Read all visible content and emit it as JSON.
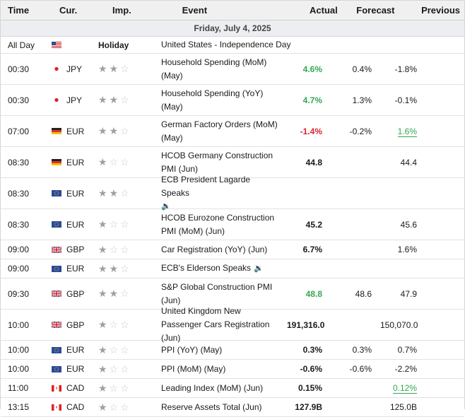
{
  "header": {
    "time": "Time",
    "cur": "Cur.",
    "imp": "Imp.",
    "event": "Event",
    "actual": "Actual",
    "forecast": "Forecast",
    "previous": "Previous"
  },
  "date_label": "Friday, July 4, 2025",
  "rows": [
    {
      "time": "All Day",
      "cur": "",
      "flag": "us",
      "imp": "Holiday",
      "event": "United States - Independence Day",
      "actual": "",
      "forecast": "",
      "previous": "",
      "holiday": true
    },
    {
      "time": "00:30",
      "cur": "JPY",
      "flag": "jp",
      "imp": 2,
      "event": "Household Spending (MoM) (May)",
      "actual": "4.6%",
      "actual_color": "green",
      "forecast": "0.4%",
      "previous": "-1.8%"
    },
    {
      "time": "00:30",
      "cur": "JPY",
      "flag": "jp",
      "imp": 2,
      "event": "Household Spending (YoY) (May)",
      "actual": "4.7%",
      "actual_color": "green",
      "forecast": "1.3%",
      "previous": "-0.1%"
    },
    {
      "time": "07:00",
      "cur": "EUR",
      "flag": "de",
      "imp": 2,
      "event": "German Factory Orders (MoM) (May)",
      "actual": "-1.4%",
      "actual_color": "red",
      "forecast": "-0.2%",
      "previous": "1.6%",
      "prev_color": "green"
    },
    {
      "time": "08:30",
      "cur": "EUR",
      "flag": "de",
      "imp": 1,
      "event": "HCOB Germany Construction PMI (Jun)",
      "actual": "44.8",
      "forecast": "",
      "previous": "44.4"
    },
    {
      "time": "08:30",
      "cur": "EUR",
      "flag": "eu",
      "imp": 2,
      "event": "ECB President Lagarde Speaks",
      "actual": "",
      "forecast": "",
      "previous": "",
      "speaker": true
    },
    {
      "time": "08:30",
      "cur": "EUR",
      "flag": "eu",
      "imp": 1,
      "event": "HCOB Eurozone Construction PMI (MoM) (Jun)",
      "actual": "45.2",
      "forecast": "",
      "previous": "45.6"
    },
    {
      "time": "09:00",
      "cur": "GBP",
      "flag": "gb",
      "imp": 1,
      "event": "Car Registration (YoY) (Jun)",
      "actual": "6.7%",
      "forecast": "",
      "previous": "1.6%"
    },
    {
      "time": "09:00",
      "cur": "EUR",
      "flag": "eu",
      "imp": 2,
      "event": "ECB's Elderson Speaks",
      "actual": "",
      "forecast": "",
      "previous": "",
      "speaker": true
    },
    {
      "time": "09:30",
      "cur": "GBP",
      "flag": "gb",
      "imp": 2,
      "event": "S&P Global Construction PMI (Jun)",
      "actual": "48.8",
      "actual_color": "green",
      "forecast": "48.6",
      "previous": "47.9"
    },
    {
      "time": "10:00",
      "cur": "GBP",
      "flag": "gb",
      "imp": 1,
      "event": "United Kingdom New Passenger Cars Registration (Jun)",
      "actual": "191,316.0",
      "forecast": "",
      "previous": "150,070.0"
    },
    {
      "time": "10:00",
      "cur": "EUR",
      "flag": "eu",
      "imp": 1,
      "event": "PPI (YoY) (May)",
      "actual": "0.3%",
      "forecast": "0.3%",
      "previous": "0.7%"
    },
    {
      "time": "10:00",
      "cur": "EUR",
      "flag": "eu",
      "imp": 1,
      "event": "PPI (MoM) (May)",
      "actual": "-0.6%",
      "forecast": "-0.6%",
      "previous": "-2.2%"
    },
    {
      "time": "11:00",
      "cur": "CAD",
      "flag": "ca",
      "imp": 1,
      "event": "Leading Index (MoM) (Jun)",
      "actual": "0.15%",
      "forecast": "",
      "previous": "0.12%",
      "prev_color": "green"
    },
    {
      "time": "13:15",
      "cur": "CAD",
      "flag": "ca",
      "imp": 1,
      "event": "Reserve Assets Total (Jun)",
      "actual": "127.9B",
      "forecast": "",
      "previous": "125.0B"
    }
  ]
}
